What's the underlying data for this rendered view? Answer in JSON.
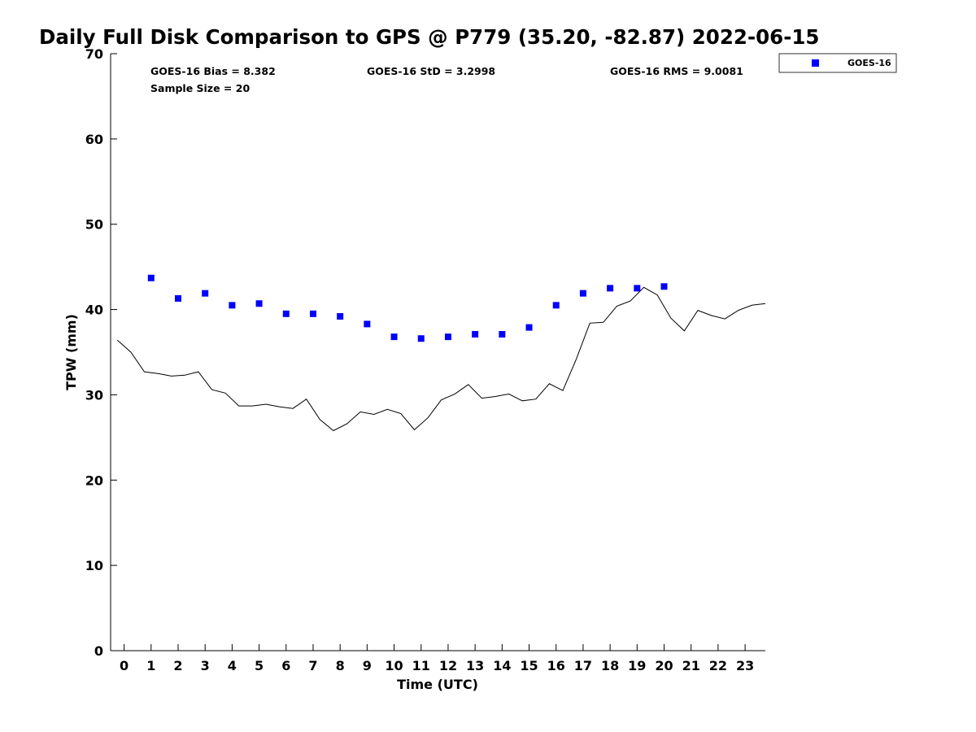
{
  "chart_data": {
    "type": "scatter",
    "title": "Daily Full Disk Comparison to GPS @ P779 (35.20, -82.87) 2022-06-15",
    "xlabel": "Time (UTC)",
    "ylabel": "TPW (mm)",
    "xlim": [
      -0.5,
      23.75
    ],
    "ylim": [
      0,
      70
    ],
    "xticks": [
      0,
      1,
      2,
      3,
      4,
      5,
      6,
      7,
      8,
      9,
      10,
      11,
      12,
      13,
      14,
      15,
      16,
      17,
      18,
      19,
      20,
      21,
      22,
      23
    ],
    "yticks": [
      0,
      10,
      20,
      30,
      40,
      50,
      60,
      70
    ],
    "grid": false,
    "legend_position": "outside-top-right",
    "stats": {
      "bias": "GOES-16 Bias = 8.382",
      "std": "GOES-16 StD = 3.2998",
      "rms": "GOES-16 RMS = 9.0081",
      "sample": "Sample Size = 20"
    },
    "series": [
      {
        "name": "GOES-16",
        "kind": "markers",
        "color": "#0000ff",
        "x": [
          1,
          2,
          3,
          4,
          5,
          6,
          7,
          8,
          9,
          10,
          11,
          12,
          13,
          14,
          15,
          16,
          17,
          18,
          19,
          20
        ],
        "y": [
          43.7,
          41.3,
          41.9,
          40.5,
          40.7,
          39.5,
          39.5,
          39.2,
          38.3,
          36.8,
          36.6,
          36.8,
          37.1,
          37.1,
          37.9,
          40.5,
          41.9,
          42.5,
          42.5,
          42.7
        ]
      },
      {
        "kind": "line",
        "color": "#000000",
        "x": [
          -0.25,
          0.25,
          0.75,
          1.25,
          1.75,
          2.25,
          2.75,
          3.25,
          3.75,
          4.25,
          4.75,
          5.25,
          5.75,
          6.25,
          6.75,
          7.25,
          7.75,
          8.25,
          8.75,
          9.25,
          9.75,
          10.25,
          10.75,
          11.25,
          11.75,
          12.25,
          12.75,
          13.25,
          13.75,
          14.25,
          14.75,
          15.25,
          15.75,
          16.25,
          16.75,
          17.25,
          17.75,
          18.25,
          18.75,
          19.25,
          19.75,
          20.25,
          20.75,
          21.25,
          21.75,
          22.25,
          22.75,
          23.25,
          23.75
        ],
        "y": [
          36.4,
          35.0,
          32.7,
          32.5,
          32.2,
          32.3,
          32.7,
          30.6,
          30.2,
          28.7,
          28.7,
          28.9,
          28.6,
          28.4,
          29.5,
          27.1,
          25.8,
          26.6,
          28.0,
          27.7,
          28.3,
          27.8,
          25.9,
          27.3,
          29.4,
          30.1,
          31.2,
          29.6,
          29.8,
          30.1,
          29.3,
          29.5,
          31.3,
          30.5,
          34.2,
          38.4,
          38.5,
          40.4,
          41.0,
          42.6,
          41.7,
          39.0,
          37.5,
          39.9,
          39.3,
          38.9,
          39.9,
          40.5,
          40.7
        ]
      }
    ]
  }
}
